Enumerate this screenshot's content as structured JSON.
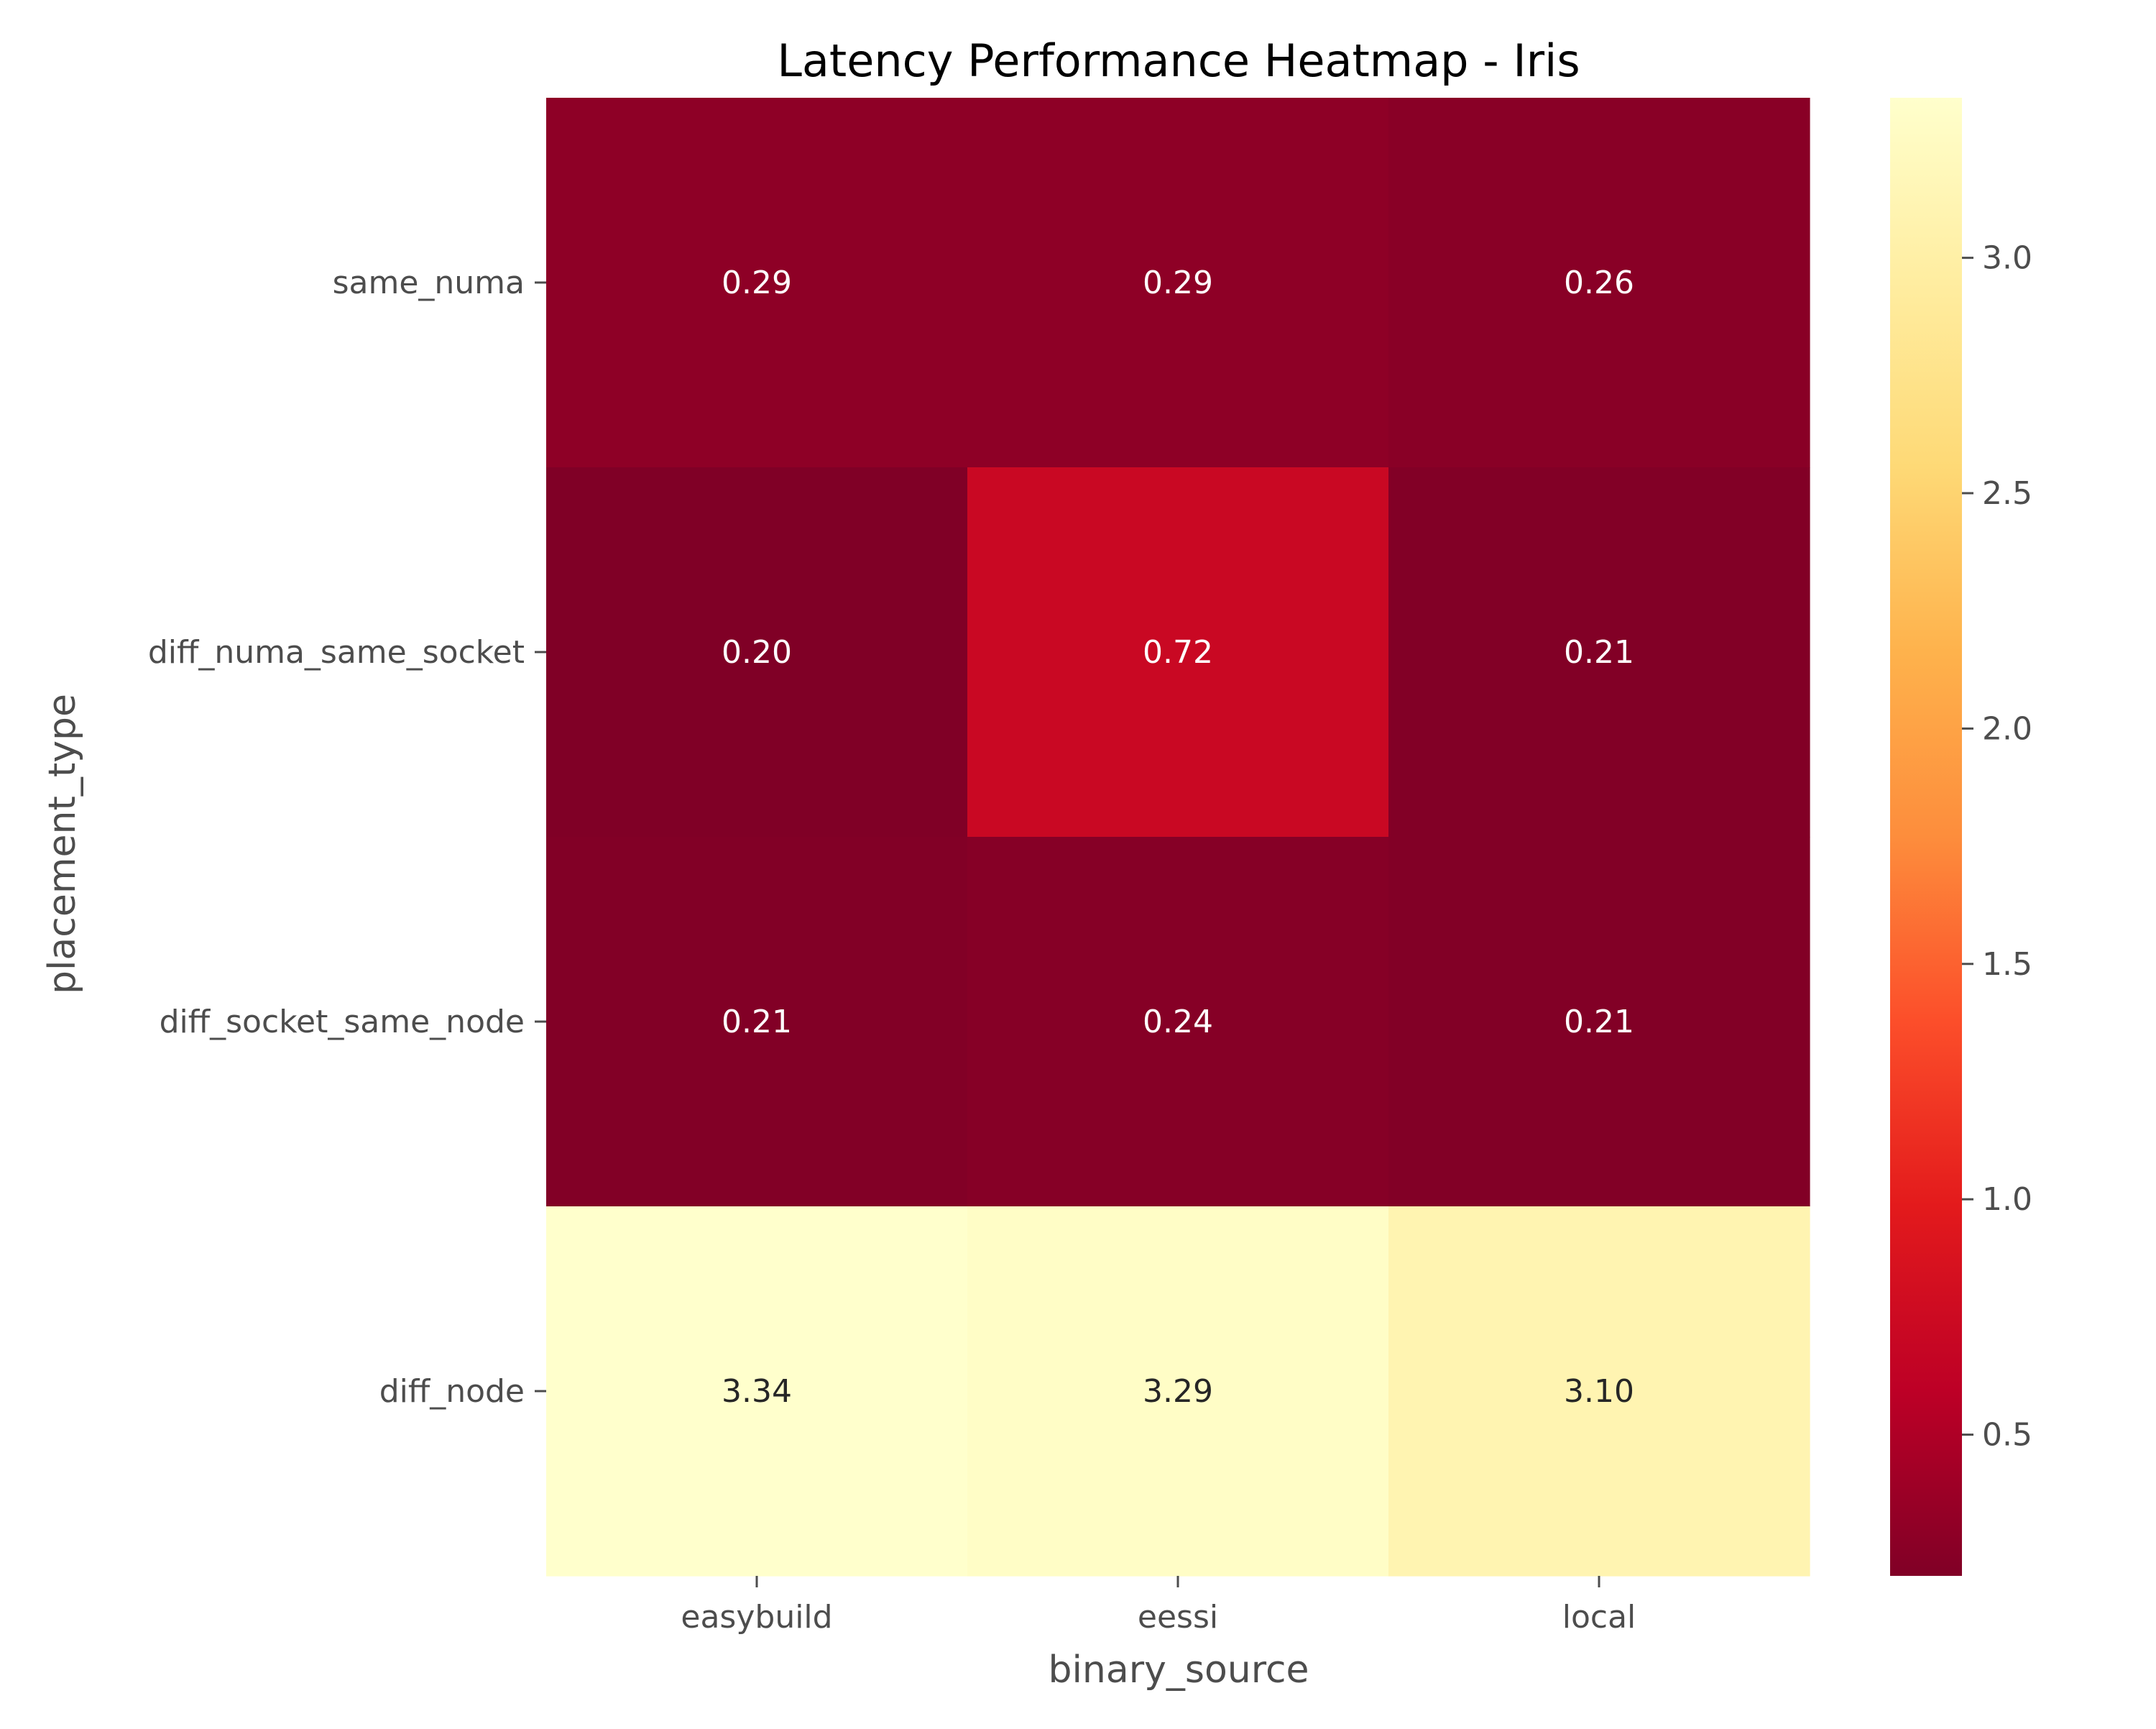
{
  "chart_data": {
    "type": "heatmap",
    "title": "Latency Performance Heatmap - Iris",
    "xlabel": "binary_source",
    "ylabel": "placement_type",
    "x_categories": [
      "easybuild",
      "eessi",
      "local"
    ],
    "y_categories": [
      "same_numa",
      "diff_numa_same_socket",
      "diff_socket_same_node",
      "diff_node"
    ],
    "values": [
      [
        0.29,
        0.29,
        0.26
      ],
      [
        0.2,
        0.72,
        0.21
      ],
      [
        0.21,
        0.24,
        0.21
      ],
      [
        3.34,
        3.29,
        3.1
      ]
    ],
    "annotation_format": "0.00",
    "colormap": "YlOrRd_r",
    "colorbar": {
      "vmin": 0.2,
      "vmax": 3.34,
      "ticks": [
        0.5,
        1.0,
        1.5,
        2.0,
        2.5,
        3.0
      ],
      "tick_labels": [
        "0.5",
        "1.0",
        "1.5",
        "2.0",
        "2.5",
        "3.0"
      ]
    },
    "colors": {
      "text_dark_cell": "#ffffff",
      "text_light_cell": "#262626",
      "axis_text": "#4d4d4d",
      "title_text": "#000000"
    }
  }
}
